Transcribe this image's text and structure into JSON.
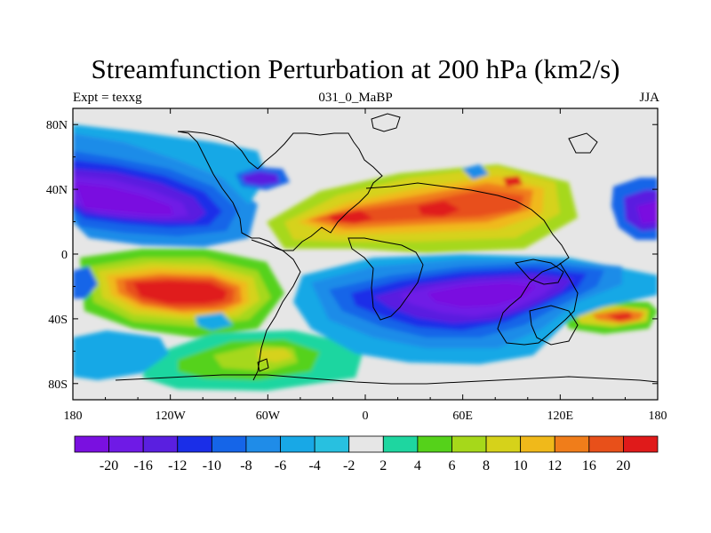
{
  "chart_data": {
    "type": "contour-map",
    "title": "Streamfunction Perturbation at 200 hPa (km2/s)",
    "subtitle_left": "Expt = texxg",
    "subtitle_center": "031_0_MaBP",
    "subtitle_right": "JJA",
    "x_ticks": [
      "180",
      "120W",
      "60W",
      "0",
      "60E",
      "120E",
      "180"
    ],
    "x_tick_values": [
      -180,
      -120,
      -60,
      0,
      60,
      120,
      180
    ],
    "y_ticks": [
      "80N",
      "40N",
      "0",
      "40S",
      "80S"
    ],
    "y_tick_values": [
      80,
      40,
      0,
      -40,
      -80
    ],
    "xlim": [
      -180,
      180
    ],
    "ylim": [
      -90,
      90
    ],
    "contour_levels": [
      "-20",
      "-16",
      "-12",
      "-10",
      "-8",
      "-6",
      "-4",
      "-2",
      "2",
      "4",
      "6",
      "8",
      "10",
      "12",
      "16",
      "20"
    ],
    "colors": [
      "#7a10e0",
      "#6f1ae6",
      "#5a1fe0",
      "#1a2ee8",
      "#1565e8",
      "#1f8ce8",
      "#18a8e6",
      "#28c0e0",
      "#e6e6e6",
      "#1ed6a0",
      "#55d21a",
      "#a6d81a",
      "#d6d21a",
      "#f0b91a",
      "#f07d1a",
      "#e8501a",
      "#e01a1a"
    ],
    "features": [
      {
        "name": "east-pacific-low",
        "lon": -150,
        "lat": 40,
        "value": -20
      },
      {
        "name": "south-pacific-high",
        "lon": -110,
        "lat": -20,
        "value": 20
      },
      {
        "name": "asian-high",
        "lon": 40,
        "lat": 28,
        "value": 20
      },
      {
        "name": "south-indian-low",
        "lon": 80,
        "lat": -30,
        "value": -20
      },
      {
        "name": "southwest-pacific-high",
        "lon": 160,
        "lat": -40,
        "value": 20
      },
      {
        "name": "south-atlantic-high",
        "lon": -50,
        "lat": -62,
        "value": 8
      }
    ]
  }
}
